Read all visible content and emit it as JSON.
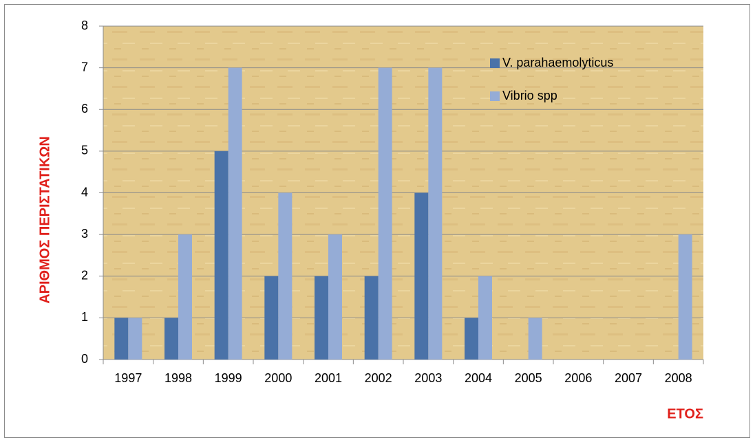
{
  "chart_data": {
    "type": "bar",
    "categories": [
      "1997",
      "1998",
      "1999",
      "2000",
      "2001",
      "2002",
      "2003",
      "2004",
      "2005",
      "2006",
      "2007",
      "2008"
    ],
    "series": [
      {
        "name": "V. parahaemolyticus",
        "color": "#4a72a8",
        "values": [
          1,
          1,
          5,
          2,
          2,
          2,
          4,
          1,
          0,
          0,
          0,
          0
        ]
      },
      {
        "name": "Vibrio spp",
        "color": "#95acd6",
        "values": [
          1,
          3,
          7,
          4,
          3,
          7,
          7,
          2,
          1,
          0,
          0,
          3
        ]
      }
    ],
    "ylim": [
      0,
      8
    ],
    "yticks": [
      0,
      1,
      2,
      3,
      4,
      5,
      6,
      7,
      8
    ],
    "y_label": "ΑΡΙΘΜΟΣ ΠΕΡΙΣΤΑΤΙΚΩΝ",
    "x_label": "ΕΤΟΣ",
    "grid": true,
    "legend": "upper right"
  }
}
